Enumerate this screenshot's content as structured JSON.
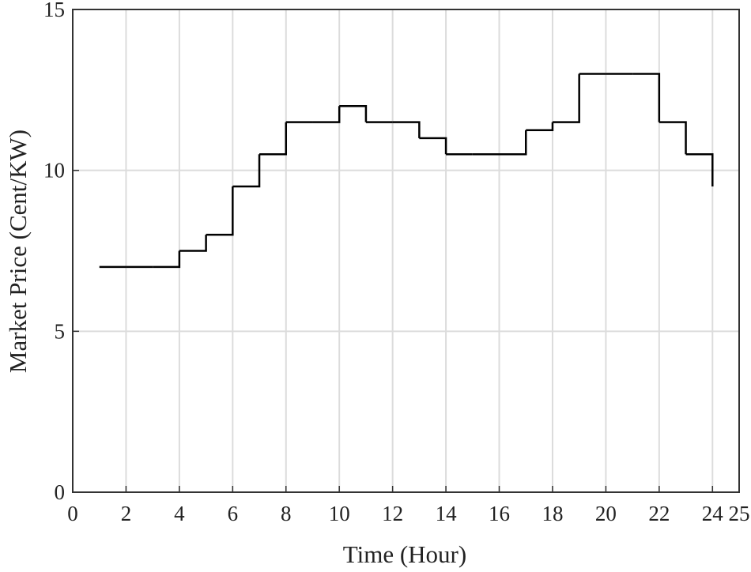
{
  "chart_data": {
    "type": "line",
    "drawstyle": "steps-post",
    "xlabel": "Time (Hour)",
    "ylabel": "Market Price (Cent/KW)",
    "series": [
      {
        "name": "Market Price",
        "color": "#000000",
        "x": [
          1,
          2,
          3,
          4,
          5,
          6,
          7,
          8,
          9,
          10,
          11,
          12,
          13,
          14,
          15,
          16,
          17,
          18,
          19,
          20,
          21,
          22,
          23,
          24
        ],
        "values": [
          7,
          7,
          7,
          7.5,
          8,
          9.5,
          10.5,
          11.5,
          11.5,
          12,
          11.5,
          11.5,
          11,
          10.5,
          10.5,
          10.5,
          11.25,
          11.5,
          13,
          13,
          13,
          11.5,
          10.5,
          9.5
        ]
      }
    ],
    "xlim": [
      0,
      25
    ],
    "xticks": [
      0,
      2,
      4,
      6,
      8,
      10,
      12,
      14,
      16,
      18,
      20,
      22,
      24,
      25
    ],
    "ylim": [
      0,
      15
    ],
    "yticks": [
      0,
      5,
      10,
      15
    ],
    "grid": true
  }
}
